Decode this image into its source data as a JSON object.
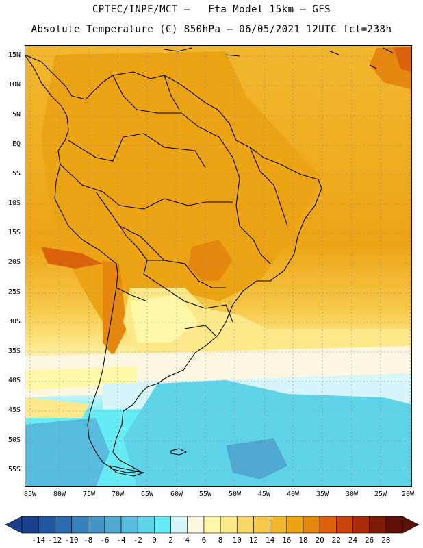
{
  "header": {
    "title_line1": "CPTEC/INPE/MCT –   Eta Model 15km – GFS",
    "title_line2": "Absolute Temperature (C) 850hPa – 06/05/2021 12UTC fct=238h"
  },
  "map": {
    "lat_labels": [
      "15N",
      "10N",
      "5N",
      "EQ",
      "5S",
      "10S",
      "15S",
      "20S",
      "25S",
      "30S",
      "35S",
      "40S",
      "45S",
      "50S",
      "55S"
    ],
    "lon_labels": [
      "85W",
      "80W",
      "75W",
      "70W",
      "65W",
      "60W",
      "55W",
      "50W",
      "45W",
      "40W",
      "35W",
      "30W",
      "25W",
      "20W"
    ]
  },
  "colorbar": {
    "labels": [
      "-14",
      "-12",
      "-10",
      "-8",
      "-6",
      "-4",
      "-2",
      "0",
      "2",
      "4",
      "6",
      "8",
      "10",
      "12",
      "14",
      "16",
      "18",
      "20",
      "22",
      "24",
      "26",
      "28"
    ],
    "colors": [
      "#1a3f8c",
      "#2157a0",
      "#2a6cb0",
      "#3781be",
      "#4596c8",
      "#4fa9d3",
      "#57bcdd",
      "#5fd3e8",
      "#66ecf4",
      "#d7f6fb",
      "#fdf6e0",
      "#fff8a8",
      "#fde98a",
      "#fbd968",
      "#f6c94a",
      "#f2b830",
      "#eda414",
      "#e6870e",
      "#db620a",
      "#c84408",
      "#a92a06",
      "#7e1a06",
      "#5e1006"
    ]
  }
}
